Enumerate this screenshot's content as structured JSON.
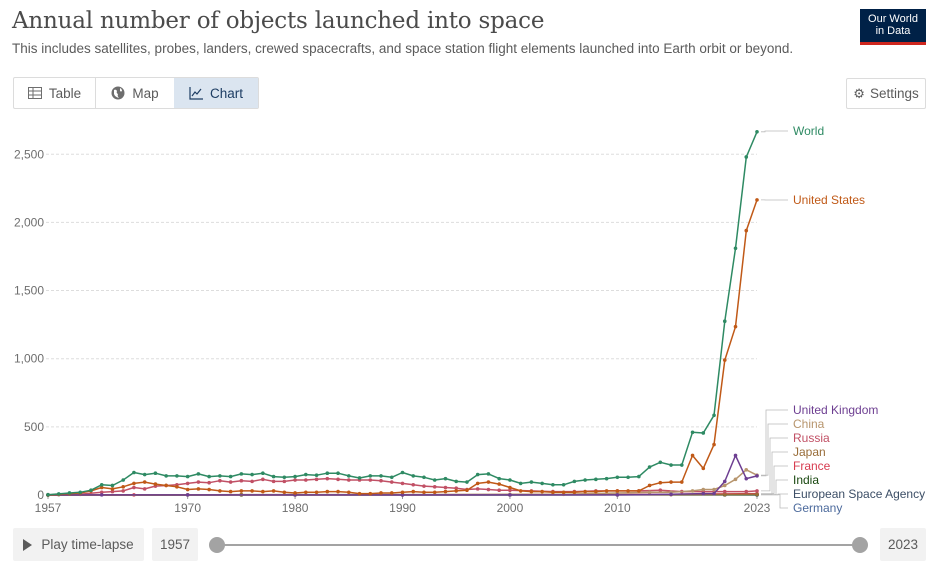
{
  "header": {
    "title": "Annual number of objects launched into space",
    "subtitle": "This includes satellites, probes, landers, crewed spacecrafts, and space station flight elements launched into Earth orbit or beyond.",
    "logo_line1": "Our World",
    "logo_line2": "in Data"
  },
  "tabs": [
    {
      "label": "Table",
      "icon": "table-icon",
      "active": false
    },
    {
      "label": "Map",
      "icon": "globe-icon",
      "active": false
    },
    {
      "label": "Chart",
      "icon": "line-chart-icon",
      "active": true
    }
  ],
  "settings_label": "Settings",
  "timeline": {
    "play_label": "Play time-lapse",
    "start_year": "1957",
    "end_year": "2023"
  },
  "chart_data": {
    "type": "line",
    "title": "Annual number of objects launched into space",
    "xlabel": "",
    "ylabel": "",
    "xlim": [
      1957,
      2023
    ],
    "ylim": [
      0,
      2700
    ],
    "x_ticks": [
      1957,
      1970,
      1980,
      1990,
      2000,
      2010,
      2023
    ],
    "y_ticks": [
      0,
      500,
      1000,
      1500,
      2000,
      2500
    ],
    "y_tick_labels": [
      "0",
      "500",
      "1,000",
      "1,500",
      "2,000",
      "2,500"
    ],
    "grid": "horizontal dashed",
    "legend": "right, line labels",
    "series": [
      {
        "name": "World",
        "color": "#2e8a63",
        "x": [
          1957,
          1958,
          1959,
          1960,
          1961,
          1962,
          1963,
          1964,
          1965,
          1966,
          1967,
          1968,
          1969,
          1970,
          1971,
          1972,
          1973,
          1974,
          1975,
          1976,
          1977,
          1978,
          1979,
          1980,
          1981,
          1982,
          1983,
          1984,
          1985,
          1986,
          1987,
          1988,
          1989,
          1990,
          1991,
          1992,
          1993,
          1994,
          1995,
          1996,
          1997,
          1998,
          1999,
          2000,
          2001,
          2002,
          2003,
          2004,
          2005,
          2006,
          2007,
          2008,
          2009,
          2010,
          2011,
          2012,
          2013,
          2014,
          2015,
          2016,
          2017,
          2018,
          2019,
          2020,
          2021,
          2022,
          2023
        ],
        "values": [
          2,
          8,
          15,
          20,
          35,
          75,
          70,
          110,
          165,
          150,
          160,
          140,
          140,
          135,
          155,
          135,
          140,
          135,
          155,
          150,
          160,
          135,
          130,
          135,
          150,
          145,
          160,
          160,
          140,
          125,
          140,
          140,
          130,
          165,
          140,
          130,
          110,
          120,
          100,
          95,
          150,
          155,
          120,
          110,
          85,
          95,
          85,
          75,
          75,
          100,
          110,
          115,
          120,
          130,
          130,
          135,
          205,
          240,
          220,
          220,
          460,
          455,
          585,
          1275,
          1810,
          2480,
          2665
        ]
      },
      {
        "name": "United States",
        "color": "#c05917",
        "x": [
          1957,
          1958,
          1959,
          1960,
          1961,
          1962,
          1963,
          1964,
          1965,
          1966,
          1967,
          1968,
          1969,
          1970,
          1971,
          1972,
          1973,
          1974,
          1975,
          1976,
          1977,
          1978,
          1979,
          1980,
          1981,
          1982,
          1983,
          1984,
          1985,
          1986,
          1987,
          1988,
          1989,
          1990,
          1991,
          1992,
          1993,
          1994,
          1995,
          1996,
          1997,
          1998,
          1999,
          2000,
          2001,
          2002,
          2003,
          2004,
          2005,
          2006,
          2007,
          2008,
          2009,
          2010,
          2011,
          2012,
          2013,
          2014,
          2015,
          2016,
          2017,
          2018,
          2019,
          2020,
          2021,
          2022,
          2023
        ],
        "values": [
          0,
          5,
          10,
          15,
          30,
          55,
          45,
          60,
          85,
          95,
          80,
          70,
          60,
          40,
          45,
          40,
          30,
          25,
          30,
          30,
          25,
          30,
          20,
          15,
          20,
          20,
          25,
          25,
          20,
          10,
          10,
          15,
          15,
          20,
          25,
          20,
          20,
          25,
          30,
          35,
          85,
          95,
          80,
          55,
          30,
          25,
          25,
          20,
          20,
          20,
          25,
          25,
          30,
          30,
          30,
          30,
          70,
          90,
          95,
          95,
          290,
          195,
          370,
          990,
          1235,
          1940,
          2165
        ]
      },
      {
        "name": "United Kingdom",
        "color": "#6d3e91",
        "x": [
          1957,
          1962,
          1970,
          1980,
          1990,
          2000,
          2010,
          2015,
          2018,
          2019,
          2020,
          2021,
          2022,
          2023
        ],
        "values": [
          0,
          1,
          1,
          1,
          1,
          1,
          1,
          5,
          10,
          10,
          100,
          290,
          120,
          140
        ]
      },
      {
        "name": "China",
        "color": "#b7956d",
        "x": [
          1957,
          1970,
          1980,
          1990,
          2000,
          2005,
          2010,
          2013,
          2015,
          2017,
          2018,
          2019,
          2020,
          2021,
          2022,
          2023
        ],
        "values": [
          0,
          1,
          1,
          2,
          5,
          5,
          15,
          20,
          20,
          30,
          40,
          40,
          70,
          115,
          185,
          145
        ]
      },
      {
        "name": "Russia",
        "color": "#c15065",
        "x": [
          1957,
          1958,
          1960,
          1962,
          1963,
          1964,
          1965,
          1966,
          1967,
          1968,
          1969,
          1970,
          1971,
          1972,
          1973,
          1974,
          1975,
          1976,
          1977,
          1978,
          1979,
          1980,
          1981,
          1982,
          1983,
          1984,
          1985,
          1986,
          1987,
          1988,
          1989,
          1990,
          1991,
          1992,
          1993,
          1994,
          1995,
          1996,
          1997,
          1998,
          1999,
          2000,
          2002,
          2004,
          2006,
          2008,
          2010,
          2012,
          2014,
          2016,
          2018,
          2020,
          2022,
          2023
        ],
        "values": [
          2,
          3,
          5,
          20,
          25,
          30,
          55,
          45,
          65,
          70,
          75,
          85,
          95,
          90,
          105,
          95,
          105,
          100,
          115,
          100,
          100,
          110,
          110,
          115,
          120,
          115,
          110,
          110,
          110,
          105,
          95,
          85,
          75,
          65,
          60,
          55,
          50,
          40,
          45,
          40,
          35,
          35,
          30,
          25,
          25,
          30,
          30,
          30,
          35,
          25,
          25,
          25,
          25,
          30
        ]
      },
      {
        "name": "Japan",
        "color": "#996d39",
        "x": [
          1957,
          1970,
          1975,
          1980,
          1990,
          2000,
          2010,
          2015,
          2020,
          2023
        ],
        "values": [
          0,
          1,
          3,
          3,
          3,
          3,
          3,
          3,
          4,
          5
        ]
      },
      {
        "name": "France",
        "color": "#d73c50",
        "x": [
          1957,
          1965,
          1970,
          1980,
          1990,
          2000,
          2010,
          2020,
          2023
        ],
        "values": [
          0,
          1,
          1,
          1,
          1,
          2,
          3,
          8,
          10
        ]
      },
      {
        "name": "India",
        "color": "#18470f",
        "x": [
          1957,
          1975,
          1980,
          1990,
          2000,
          2010,
          2020,
          2023
        ],
        "values": [
          0,
          1,
          1,
          1,
          1,
          2,
          2,
          3
        ]
      },
      {
        "name": "European Space Agency",
        "color": "#3c4e66",
        "x": [
          1957,
          1975,
          1980,
          1990,
          2000,
          2010,
          2020,
          2023
        ],
        "values": [
          0,
          1,
          1,
          1,
          1,
          1,
          1,
          1
        ]
      },
      {
        "name": "Germany",
        "color": "#4c6a9c",
        "x": [
          1957,
          1970,
          1980,
          1990,
          2000,
          2010,
          2020,
          2023
        ],
        "values": [
          0,
          1,
          1,
          1,
          1,
          2,
          2,
          2
        ]
      }
    ]
  }
}
